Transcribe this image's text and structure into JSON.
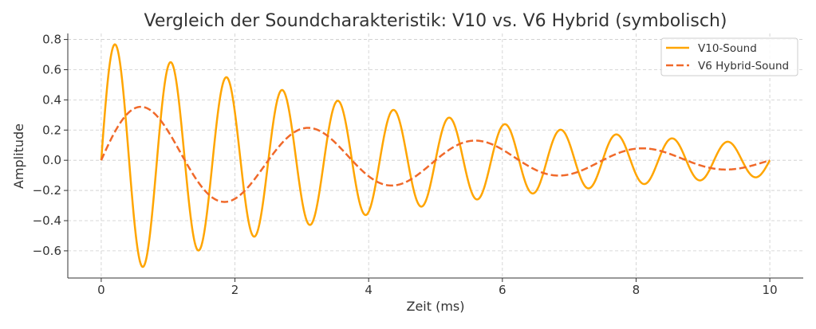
{
  "chart_data": {
    "type": "line",
    "title": "Vergleich der Soundcharakteristik: V10 vs. V6 Hybrid (symbolisch)",
    "xlabel": "Zeit (ms)",
    "ylabel": "Amplitude",
    "xlim": [
      -0.5,
      10.5
    ],
    "ylim": [
      -0.78,
      0.84
    ],
    "xticks": [
      0,
      2,
      4,
      6,
      8,
      10
    ],
    "xtick_labels": [
      "0",
      "2",
      "4",
      "6",
      "8",
      "10"
    ],
    "yticks": [
      -0.6,
      -0.4,
      -0.2,
      0.0,
      0.2,
      0.4,
      0.6,
      0.8
    ],
    "ytick_labels": [
      "−0.6",
      "−0.4",
      "−0.2",
      "0.0",
      "0.2",
      "0.4",
      "0.6",
      "0.8"
    ],
    "grid": true,
    "legend_position": "top-right",
    "x_range": [
      0,
      10
    ],
    "model": "amplitude * exp(-decay * t) * sin(2*pi*frequency*t)",
    "series": [
      {
        "name": "V10-Sound",
        "style": "solid",
        "color": "#ffa500",
        "amplitude": 0.8,
        "frequency": 1.2,
        "decay": 0.2
      },
      {
        "name": "V6 Hybrid-Sound",
        "style": "dashed",
        "color": "#f0692a",
        "amplitude": 0.4,
        "frequency": 0.4,
        "decay": 0.2
      }
    ]
  }
}
